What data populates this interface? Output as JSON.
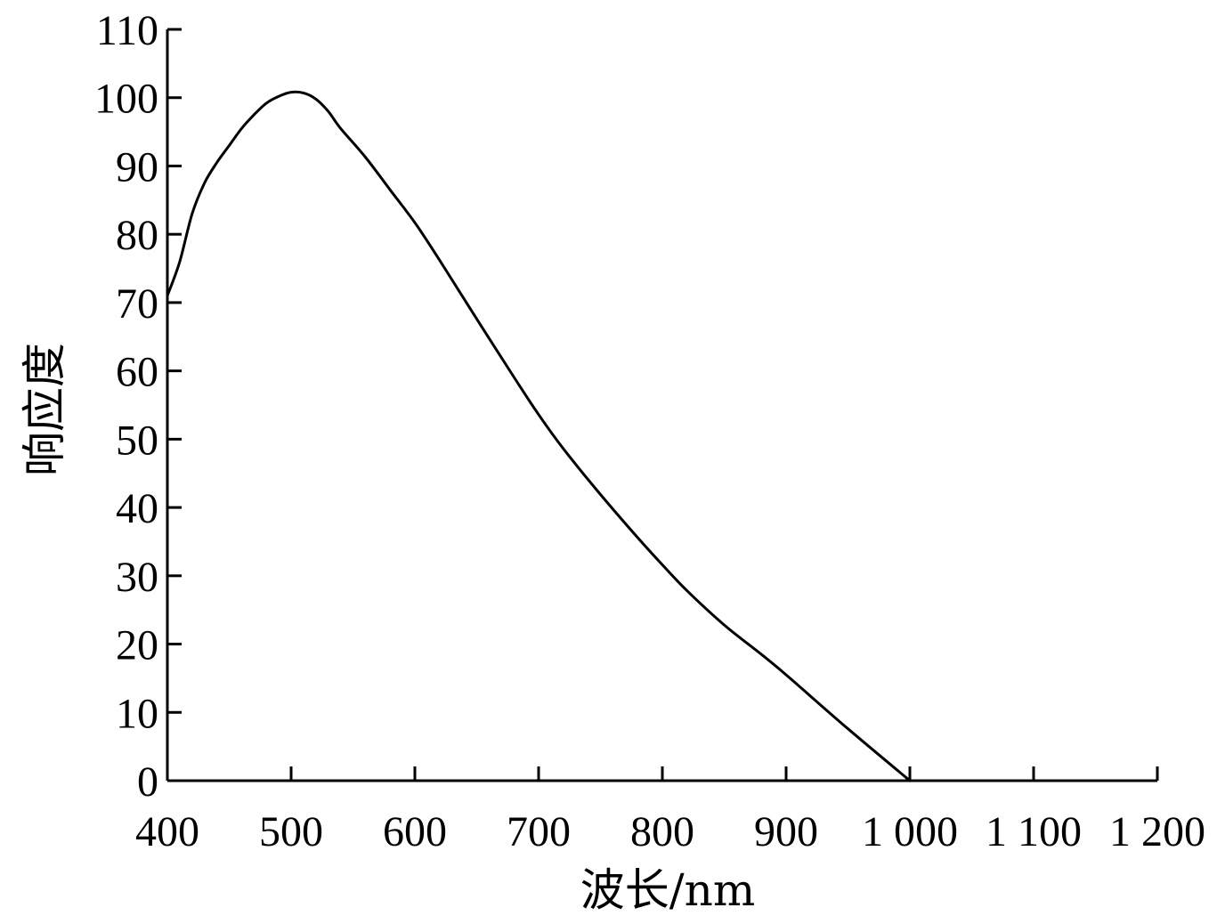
{
  "chart_data": {
    "type": "line",
    "title": "",
    "xlabel": "波长/nm",
    "ylabel": "响应度",
    "xlim": [
      400,
      1200
    ],
    "ylim": [
      0,
      110
    ],
    "x_ticks": [
      400,
      500,
      600,
      700,
      800,
      900,
      1000,
      1100,
      1200
    ],
    "x_tick_labels": [
      "400",
      "500",
      "600",
      "700",
      "800",
      "900",
      "1 000",
      "1 100",
      "1 200"
    ],
    "y_ticks": [
      0,
      10,
      20,
      30,
      40,
      50,
      60,
      70,
      80,
      90,
      100,
      110
    ],
    "y_tick_labels": [
      "0",
      "10",
      "20",
      "30",
      "40",
      "50",
      "60",
      "70",
      "80",
      "90",
      "100",
      "110"
    ],
    "grid": false,
    "legend": "none",
    "series": [
      {
        "x": [
          400,
          410,
          420,
          430,
          440,
          450,
          460,
          470,
          480,
          490,
          500,
          510,
          520,
          530,
          540,
          560,
          580,
          600,
          620,
          650,
          680,
          700,
          720,
          750,
          780,
          800,
          820,
          850,
          880,
          900,
          950,
          1000
        ],
        "y": [
          71,
          76,
          83,
          87.5,
          90.5,
          93,
          95.5,
          97.5,
          99.2,
          100.2,
          100.8,
          100.7,
          99.8,
          98,
          95.5,
          91.3,
          86.5,
          81.7,
          76.2,
          67.6,
          59.1,
          53.6,
          48.6,
          41.9,
          35.6,
          31.6,
          27.8,
          22.8,
          18.5,
          15.5,
          7.6,
          0
        ]
      }
    ]
  }
}
